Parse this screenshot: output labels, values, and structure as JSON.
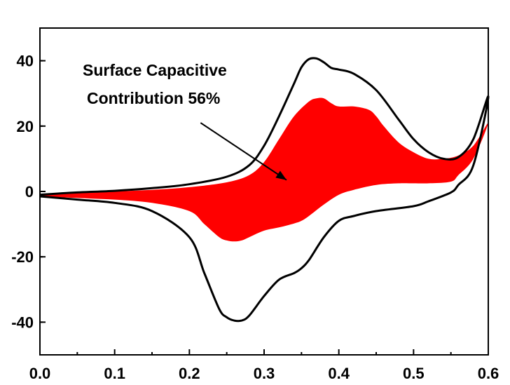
{
  "chart_data": {
    "type": "area",
    "title": "",
    "xlabel": "",
    "ylabel": "",
    "xlim": [
      0.0,
      0.6
    ],
    "ylim": [
      -50,
      50
    ],
    "x_ticks": [
      "0.0",
      "0.1",
      "0.2",
      "0.3",
      "0.4",
      "0.5",
      "0.6"
    ],
    "y_ticks": [
      "-40",
      "-20",
      "0",
      "20",
      "40"
    ],
    "grid": false,
    "legend": "none",
    "colors": {
      "total_curve": "#000000",
      "capacitive_fill": "#ff0000",
      "background": "#ffffff"
    },
    "series": [
      {
        "role": "total-cv-forward",
        "x": [
          0.0,
          0.05,
          0.1,
          0.15,
          0.2,
          0.25,
          0.28,
          0.3,
          0.32,
          0.34,
          0.35,
          0.36,
          0.37,
          0.38,
          0.39,
          0.4,
          0.42,
          0.45,
          0.48,
          0.5,
          0.52,
          0.54,
          0.56,
          0.58,
          0.6
        ],
        "y": [
          -1,
          -0.3,
          0.2,
          1,
          2.2,
          4.5,
          8,
          14,
          23,
          33,
          38,
          40.5,
          40.7,
          39.5,
          37.8,
          37.3,
          36,
          31,
          22,
          16,
          12,
          10,
          10.5,
          16,
          29
        ]
      },
      {
        "role": "total-cv-reverse",
        "x": [
          0.6,
          0.58,
          0.56,
          0.55,
          0.52,
          0.5,
          0.45,
          0.42,
          0.4,
          0.38,
          0.36,
          0.35,
          0.34,
          0.32,
          0.3,
          0.28,
          0.27,
          0.26,
          0.25,
          0.24,
          0.22,
          0.2,
          0.15,
          0.1,
          0.05,
          0.0
        ],
        "y": [
          21,
          8,
          2,
          -0.3,
          -3,
          -4.5,
          -6,
          -7.5,
          -9,
          -14,
          -21,
          -23.5,
          -25,
          -27,
          -32,
          -38,
          -39.5,
          -39.5,
          -38.5,
          -36,
          -25,
          -14,
          -6,
          -3.5,
          -2.5,
          -1.5
        ]
      },
      {
        "role": "capacitive-upper",
        "x": [
          0.0,
          0.05,
          0.1,
          0.15,
          0.2,
          0.25,
          0.28,
          0.3,
          0.32,
          0.34,
          0.36,
          0.37,
          0.38,
          0.39,
          0.4,
          0.42,
          0.44,
          0.45,
          0.46,
          0.48,
          0.5,
          0.52,
          0.54,
          0.56,
          0.58,
          0.6
        ],
        "y": [
          -1,
          -0.5,
          0,
          0.5,
          1.3,
          2.8,
          5,
          9,
          16,
          23,
          27.5,
          28.5,
          28.5,
          27,
          26,
          26,
          25,
          23,
          20,
          15,
          12,
          10,
          10,
          11,
          14,
          21
        ]
      },
      {
        "role": "capacitive-lower",
        "x": [
          0.6,
          0.58,
          0.56,
          0.55,
          0.52,
          0.5,
          0.48,
          0.45,
          0.42,
          0.4,
          0.38,
          0.36,
          0.35,
          0.34,
          0.32,
          0.3,
          0.28,
          0.27,
          0.26,
          0.25,
          0.24,
          0.22,
          0.2,
          0.15,
          0.1,
          0.05,
          0.0
        ],
        "y": [
          21,
          10,
          5,
          3,
          2.5,
          2.5,
          2.5,
          2,
          0.5,
          -1,
          -4,
          -7.5,
          -9,
          -9.8,
          -11,
          -12,
          -14,
          -15,
          -15.3,
          -15,
          -14,
          -10,
          -6,
          -3.5,
          -2.5,
          -2,
          -1.5
        ]
      }
    ],
    "annotation": {
      "line1": "Surface Capacitive",
      "line2": "Contribution  56%",
      "arrow_from": [
        0.215,
        21
      ],
      "arrow_to": [
        0.33,
        3.5
      ]
    }
  }
}
